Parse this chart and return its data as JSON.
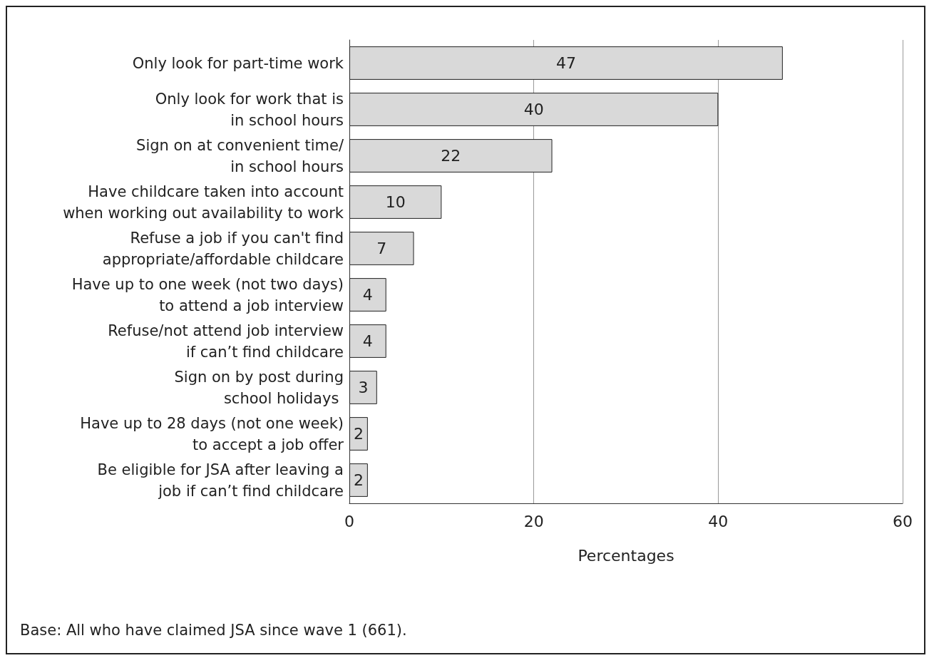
{
  "chart_data": {
    "type": "bar",
    "orientation": "horizontal",
    "categories": [
      "Only look for part-time work",
      "Only look for work that is\nin school hours",
      "Sign on at convenient time/\nin school hours",
      "Have childcare taken into account\nwhen working out availability to work",
      "Refuse a job if you can't find\nappropriate/affordable childcare",
      "Have up to one week (not two days)\nto attend a job interview",
      "Refuse/not attend job interview\nif can’t find childcare",
      "Sign on by post during\nschool holidays ",
      "Have up to 28 days (not one week)\nto accept a job offer",
      "Be eligible for JSA after leaving a\njob if can’t find childcare"
    ],
    "values": [
      47,
      40,
      22,
      10,
      7,
      4,
      4,
      3,
      2,
      2
    ],
    "color": "#d9d9d9",
    "xlabel": "Percentages",
    "xlim": [
      0,
      60
    ],
    "xticks": [
      0,
      20,
      40,
      60
    ],
    "grid": "x",
    "data_labels": true,
    "annotations": [
      "Base: All who have claimed JSA since wave 1 (661)."
    ]
  }
}
